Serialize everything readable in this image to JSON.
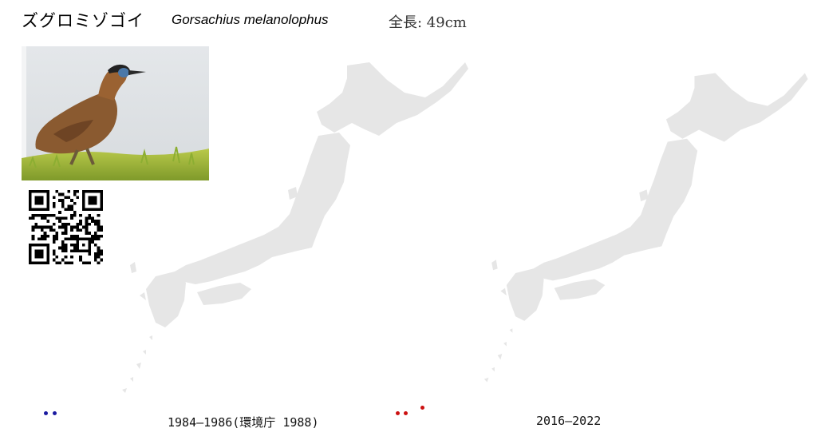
{
  "header": {
    "common_name": "ズグロミゾゴイ",
    "scientific_name": "Gorsachius melanolophus",
    "length": "全長: 49cm"
  },
  "photo": {
    "subject": "bird-photo"
  },
  "qr": {
    "icon": "qr-code"
  },
  "maps": [
    {
      "caption": "1984–1986(環境庁 1988)",
      "dot_color": "#1a1aa0",
      "dot_count": 2
    },
    {
      "caption": "2016–2022",
      "dot_color": "#cc1111",
      "dot_count": 3
    }
  ],
  "colors": {
    "land": "#e6e6e6",
    "background": "#ffffff"
  }
}
